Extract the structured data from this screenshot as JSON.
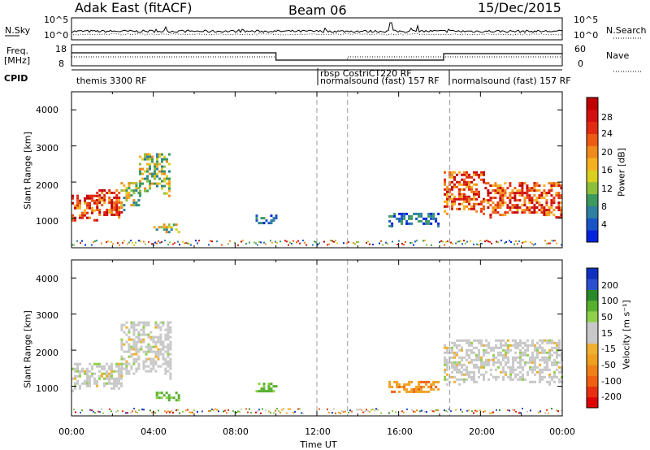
{
  "header": {
    "radar": "Adak East (fitACF)",
    "beam": "Beam 06",
    "date": "15/Dec/2015"
  },
  "top_panel_labels": {
    "nsky": "N.Sky",
    "nsky_ticks": [
      "10^5",
      "10^0"
    ],
    "nsearch": "N.Search",
    "nsearch_ticks": [
      "10^5",
      "10^0"
    ],
    "freq": "Freq.",
    "freq_unit": "[MHz]",
    "freq_ticks": [
      "18",
      "8"
    ],
    "nave": "Nave",
    "nave_ticks": [
      "60",
      "0"
    ],
    "cpid": "CPID"
  },
  "cpid_labels": [
    "themis 3300 RF",
    "rbsp CostriCT220 RF",
    "normalsound (fast) 157 RF",
    "normalsound (fast) 157 RF"
  ],
  "colorbar_power": {
    "label": "Power [dB]",
    "ticks": [
      "28",
      "24",
      "20",
      "16",
      "12",
      "8",
      "4"
    ],
    "colors": [
      "#0022dd",
      "#1a55c8",
      "#2f7f9e",
      "#3c9a5e",
      "#8cc03a",
      "#d9d020",
      "#f7b020",
      "#f08a1c",
      "#ec5a14",
      "#e22a10",
      "#d40f0f",
      "#c00000"
    ]
  },
  "colorbar_velocity": {
    "label": "Velocity [m s⁻¹]",
    "ticks": [
      "200",
      "100",
      "50",
      "15",
      "-15",
      "-50",
      "-100",
      "-200"
    ],
    "colors": [
      "#1030c0",
      "#2a50d0",
      "#2a8a2a",
      "#58b030",
      "#8fd04a",
      "#c8c8c8",
      "#c8c8c8",
      "#f0b030",
      "#f0a020",
      "#f08018",
      "#f06010",
      "#e83010",
      "#e00000"
    ]
  },
  "axes": {
    "ylabel": "Slant Range [km]",
    "xlabel": "Time UT",
    "yticks": [
      "4000",
      "3000",
      "2000",
      "1000"
    ],
    "xticks": [
      "00:00",
      "04:00",
      "08:00",
      "12:00",
      "16:00",
      "20:00",
      "00:00"
    ]
  },
  "chart_data": [
    {
      "type": "heatmap",
      "title": "Power",
      "xlabel": "Time UT",
      "ylabel": "Slant Range [km]",
      "xlim": [
        0,
        24
      ],
      "ylim": [
        180,
        4500
      ],
      "colorbar": {
        "label": "Power [dB]",
        "range": [
          0,
          32
        ]
      },
      "regions": [
        {
          "t": [
            0.0,
            1.2
          ],
          "r": [
            900,
            1650
          ],
          "level": "high"
        },
        {
          "t": [
            1.2,
            2.4
          ],
          "r": [
            1000,
            1800
          ],
          "level": "high"
        },
        {
          "t": [
            2.4,
            3.3
          ],
          "r": [
            1200,
            2000
          ],
          "level": "mid"
        },
        {
          "t": [
            3.3,
            4.8
          ],
          "r": [
            1600,
            2800
          ],
          "level": "mid"
        },
        {
          "t": [
            4.0,
            5.3
          ],
          "r": [
            600,
            850
          ],
          "level": "mid"
        },
        {
          "t": [
            9.0,
            10.0
          ],
          "r": [
            850,
            1100
          ],
          "level": "low"
        },
        {
          "t": [
            15.5,
            18.0
          ],
          "r": [
            800,
            1150
          ],
          "level": "low"
        },
        {
          "t": [
            18.2,
            20.2
          ],
          "r": [
            1100,
            2300
          ],
          "level": "high"
        },
        {
          "t": [
            20.2,
            24.0
          ],
          "r": [
            1000,
            2000
          ],
          "level": "high"
        }
      ]
    },
    {
      "type": "heatmap",
      "title": "Velocity",
      "xlabel": "Time UT",
      "ylabel": "Slant Range [km]",
      "xlim": [
        0,
        24
      ],
      "ylim": [
        180,
        4500
      ],
      "colorbar": {
        "label": "Velocity [m s-1]",
        "ticks": [
          200,
          100,
          50,
          15,
          -15,
          -50,
          -100,
          -200
        ]
      },
      "regions": [
        {
          "t": [
            0.0,
            2.4
          ],
          "r": [
            900,
            1650
          ],
          "level": "ground"
        },
        {
          "t": [
            2.4,
            4.8
          ],
          "r": [
            1200,
            2800
          ],
          "level": "ground"
        },
        {
          "t": [
            4.0,
            5.3
          ],
          "r": [
            600,
            850
          ],
          "level": "positive"
        },
        {
          "t": [
            9.0,
            10.0
          ],
          "r": [
            850,
            1100
          ],
          "level": "positive"
        },
        {
          "t": [
            15.5,
            18.0
          ],
          "r": [
            800,
            1150
          ],
          "level": "negative"
        },
        {
          "t": [
            18.2,
            24.0
          ],
          "r": [
            1000,
            2300
          ],
          "level": "ground"
        }
      ]
    }
  ]
}
